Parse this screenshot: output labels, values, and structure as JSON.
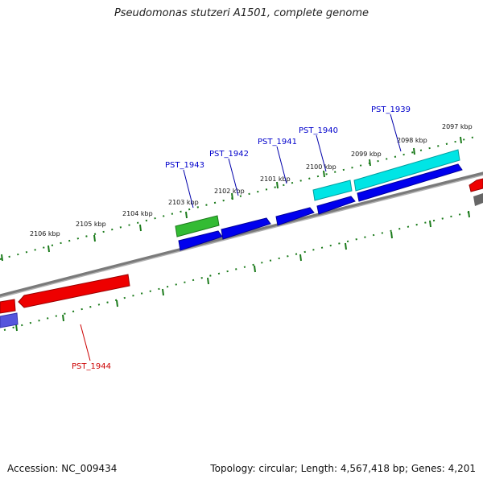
{
  "title": "Pseudomonas stutzeri A1501, complete genome",
  "footer": {
    "accession": "Accession: NC_009434",
    "topology": "Topology: circular; Length: 4,567,418 bp; Genes: 4,201"
  },
  "ticks": [
    "2097 kbp",
    "2098 kbp",
    "2099 kbp",
    "2100 kbp",
    "2101 kbp",
    "2102 kbp",
    "2103 kbp",
    "2104 kbp",
    "2105 kbp",
    "2106 kbp"
  ],
  "genes": [
    {
      "label": "PST_1939",
      "color": "#0000cc"
    },
    {
      "label": "PST_1940",
      "color": "#0000cc"
    },
    {
      "label": "PST_1941",
      "color": "#0000cc"
    },
    {
      "label": "PST_1942",
      "color": "#0000cc"
    },
    {
      "label": "PST_1943",
      "color": "#0000cc"
    },
    {
      "label": "PST_1944",
      "color": "#cc0000"
    }
  ],
  "colors": {
    "backbone": "#888888",
    "tick": "#1a7a1a",
    "cds_forward": "#0000ee",
    "rrna_cyan": "#00e5e5",
    "trna_green": "#33bb33",
    "cds_reverse": "#ee0000"
  }
}
